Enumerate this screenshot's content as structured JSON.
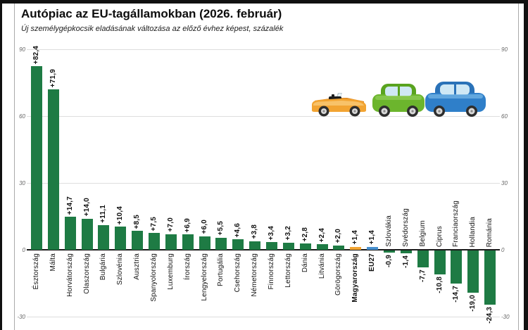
{
  "title": "Autópiac az EU-tagállamokban (2026. február)",
  "subtitle": "Új személygépkocsik eladásának változása az előző évhez képest, százalék",
  "chart_data": {
    "type": "bar",
    "title": "Autópiac az EU-tagállamokban (2026. február)",
    "subtitle": "Új személygépkocsik eladásának változása az előző évhez képest, százalék",
    "ylim": [
      -30,
      90
    ],
    "grid": true,
    "yticks": [
      {
        "value": 90,
        "label": "90"
      },
      {
        "value": 60,
        "label": "60"
      },
      {
        "value": 30,
        "label": "30"
      },
      {
        "value": 0,
        "label": "0"
      },
      {
        "value": -30,
        "label": "-30"
      }
    ],
    "bars": [
      {
        "label": "Észtország",
        "value": 82.4,
        "display": "+82,4",
        "color": "green",
        "bold": false
      },
      {
        "label": "Málta",
        "value": 71.9,
        "display": "+71,9",
        "color": "green",
        "bold": false
      },
      {
        "label": "Horvátország",
        "value": 14.7,
        "display": "+14,7",
        "color": "green",
        "bold": false
      },
      {
        "label": "Olaszország",
        "value": 14.0,
        "display": "+14,0",
        "color": "green",
        "bold": false
      },
      {
        "label": "Bulgária",
        "value": 11.1,
        "display": "+11,1",
        "color": "green",
        "bold": false
      },
      {
        "label": "Szlovénia",
        "value": 10.4,
        "display": "+10,4",
        "color": "green",
        "bold": false
      },
      {
        "label": "Ausztria",
        "value": 8.5,
        "display": "+8,5",
        "color": "green",
        "bold": false
      },
      {
        "label": "Spanyolország",
        "value": 7.5,
        "display": "+7,5",
        "color": "green",
        "bold": false
      },
      {
        "label": "Luxemburg",
        "value": 7.0,
        "display": "+7,0",
        "color": "green",
        "bold": false
      },
      {
        "label": "Írország",
        "value": 6.9,
        "display": "+6,9",
        "color": "green",
        "bold": false
      },
      {
        "label": "Lengyelország",
        "value": 6.0,
        "display": "+6,0",
        "color": "green",
        "bold": false
      },
      {
        "label": "Portugália",
        "value": 5.5,
        "display": "+5,5",
        "color": "green",
        "bold": false
      },
      {
        "label": "Csehország",
        "value": 4.6,
        "display": "+4,6",
        "color": "green",
        "bold": false
      },
      {
        "label": "Németország",
        "value": 3.8,
        "display": "+3,8",
        "color": "green",
        "bold": false
      },
      {
        "label": "Finnország",
        "value": 3.4,
        "display": "+3,4",
        "color": "green",
        "bold": false
      },
      {
        "label": "Lettország",
        "value": 3.2,
        "display": "+3,2",
        "color": "green",
        "bold": false
      },
      {
        "label": "Dánia",
        "value": 2.8,
        "display": "+2,8",
        "color": "green",
        "bold": false
      },
      {
        "label": "Litvánia",
        "value": 2.4,
        "display": "+2,4",
        "color": "green",
        "bold": false
      },
      {
        "label": "Görögország",
        "value": 2.0,
        "display": "+2,0",
        "color": "green",
        "bold": false
      },
      {
        "label": "Magyarország",
        "value": 1.4,
        "display": "+1,4",
        "color": "orange",
        "bold": true
      },
      {
        "label": "EU27",
        "value": 1.4,
        "display": "+1,4",
        "color": "blue",
        "bold": true
      },
      {
        "label": "Szlovákia",
        "value": -0.9,
        "display": "-0,9",
        "color": "green",
        "bold": false
      },
      {
        "label": "Svédország",
        "value": -1.4,
        "display": "-1,4",
        "color": "green",
        "bold": false
      },
      {
        "label": "Belgium",
        "value": -7.7,
        "display": "-7,7",
        "color": "green",
        "bold": false
      },
      {
        "label": "Ciprus",
        "value": -10.8,
        "display": "-10,8",
        "color": "green",
        "bold": false
      },
      {
        "label": "Franciaország",
        "value": -14.7,
        "display": "-14,7",
        "color": "green",
        "bold": false
      },
      {
        "label": "Hollandia",
        "value": -19.0,
        "display": "-19,0",
        "color": "green",
        "bold": false
      },
      {
        "label": "Románia",
        "value": -24.3,
        "display": "-24,3",
        "color": "green",
        "bold": false
      }
    ],
    "colors": {
      "green": "#1e7b44",
      "orange": "#f2a432",
      "blue": "#468fce",
      "grid": "#dedede",
      "axis": "#1a1a1a"
    }
  },
  "icons": {
    "cars": [
      "orange-convertible-car-icon",
      "green-car-icon",
      "blue-car-icon"
    ],
    "car_colors": {
      "orange_body": "#f2a432",
      "orange_deck": "#e0871e",
      "green_body": "#6cb52d",
      "green_roof": "#59a31f",
      "blue_body": "#2f7fc9",
      "blue_roof": "#2a72b8",
      "window": "#cfe8f5",
      "tire": "#2e2e2e",
      "hub": "#d9d9d9"
    }
  }
}
